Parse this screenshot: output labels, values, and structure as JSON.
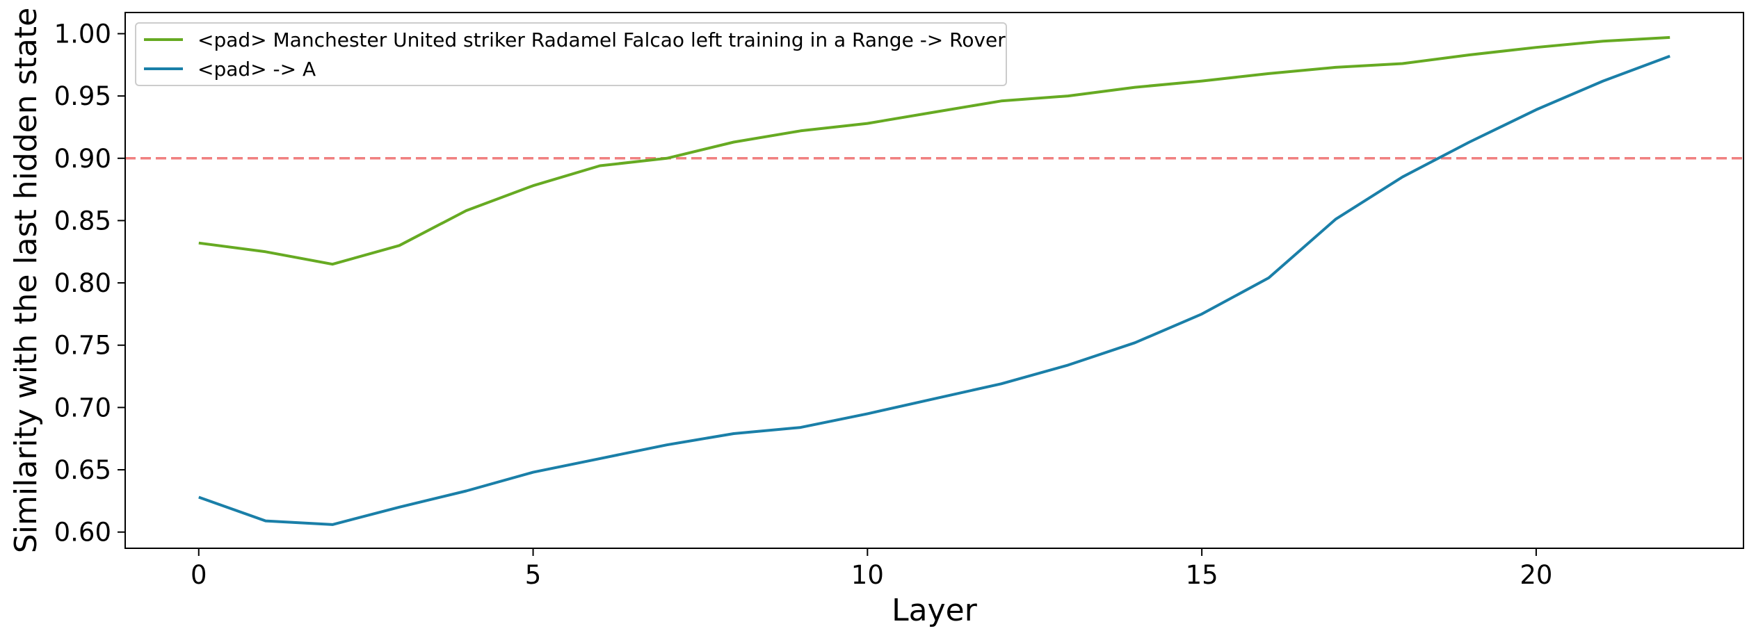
{
  "chart_data": {
    "type": "line",
    "xlabel": "Layer",
    "ylabel": "Similarity with the last hidden state",
    "xlim": [
      -1.1,
      23.1
    ],
    "ylim": [
      0.587,
      1.017
    ],
    "x_ticks": [
      0,
      5,
      10,
      15,
      20
    ],
    "y_ticks": [
      0.6,
      0.65,
      0.7,
      0.75,
      0.8,
      0.85,
      0.9,
      0.95,
      1.0
    ],
    "x_tick_labels": [
      "0",
      "5",
      "10",
      "15",
      "20"
    ],
    "y_tick_labels": [
      "0.60",
      "0.65",
      "0.70",
      "0.75",
      "0.80",
      "0.85",
      "0.90",
      "0.95",
      "1.00"
    ],
    "grid": false,
    "legend_position": "top-left",
    "threshold": {
      "y": 0.9,
      "style": "dashed",
      "color": "#f08080"
    },
    "x": [
      0,
      1,
      2,
      3,
      4,
      5,
      6,
      7,
      8,
      9,
      10,
      11,
      12,
      13,
      14,
      15,
      16,
      17,
      18,
      19,
      20,
      21,
      22
    ],
    "series": [
      {
        "name": "<pad> Manchester United striker Radamel Falcao left training in a Range -> Rover",
        "color": "#66aa22",
        "values": [
          0.832,
          0.825,
          0.815,
          0.83,
          0.858,
          0.878,
          0.894,
          0.9,
          0.913,
          0.922,
          0.928,
          0.937,
          0.946,
          0.95,
          0.957,
          0.962,
          0.968,
          0.973,
          0.976,
          0.983,
          0.989,
          0.994,
          0.997
        ]
      },
      {
        "name": "<pad> -> A",
        "color": "#1a7fa8",
        "values": [
          0.628,
          0.609,
          0.606,
          0.62,
          0.633,
          0.648,
          0.659,
          0.67,
          0.679,
          0.684,
          0.695,
          0.707,
          0.719,
          0.734,
          0.752,
          0.775,
          0.804,
          0.851,
          0.885,
          0.913,
          0.939,
          0.962,
          0.982
        ]
      }
    ]
  }
}
